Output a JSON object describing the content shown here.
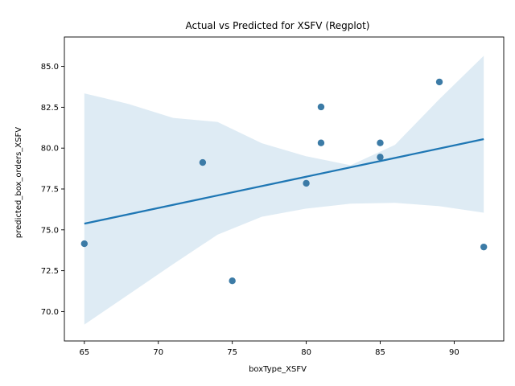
{
  "chart_data": {
    "type": "scatter",
    "title": "Actual vs Predicted for XSFV (Regplot)",
    "xlabel": "boxType_XSFV",
    "ylabel": "predicted_box_orders_XSFV",
    "xlim": [
      63.65,
      93.35
    ],
    "ylim": [
      68.2,
      86.8
    ],
    "xticks": [
      65,
      70,
      75,
      80,
      85,
      90
    ],
    "xtick_labels": [
      "65",
      "70",
      "75",
      "80",
      "85",
      "90"
    ],
    "yticks": [
      70.0,
      72.5,
      75.0,
      77.5,
      80.0,
      82.5,
      85.0
    ],
    "ytick_labels": [
      "70.0",
      "72.5",
      "75.0",
      "77.5",
      "80.0",
      "82.5",
      "85.0"
    ],
    "grid": false,
    "series": [
      {
        "points": [
          {
            "x": 65,
            "y": 74.15
          },
          {
            "x": 73,
            "y": 79.12
          },
          {
            "x": 75,
            "y": 71.88
          },
          {
            "x": 80,
            "y": 77.85
          },
          {
            "x": 81,
            "y": 82.52
          },
          {
            "x": 81,
            "y": 80.32
          },
          {
            "x": 85,
            "y": 80.32
          },
          {
            "x": 85,
            "y": 79.45
          },
          {
            "x": 89,
            "y": 84.05
          },
          {
            "x": 92,
            "y": 73.95
          }
        ]
      }
    ],
    "regression_line": {
      "x": [
        65,
        92
      ],
      "y": [
        75.38,
        80.55
      ]
    },
    "confidence_band": {
      "x": [
        65,
        68,
        71,
        74,
        77,
        80,
        83,
        86,
        89,
        92
      ],
      "upper": [
        83.35,
        82.7,
        81.85,
        81.6,
        80.3,
        79.5,
        78.95,
        80.2,
        83.0,
        85.65
      ],
      "lower": [
        69.2,
        71.05,
        72.9,
        74.7,
        75.8,
        76.3,
        76.6,
        76.65,
        76.45,
        76.05
      ]
    },
    "colors": {
      "points": "#3274a1",
      "line": "#1f77b4",
      "band": "#1f77b4"
    }
  }
}
